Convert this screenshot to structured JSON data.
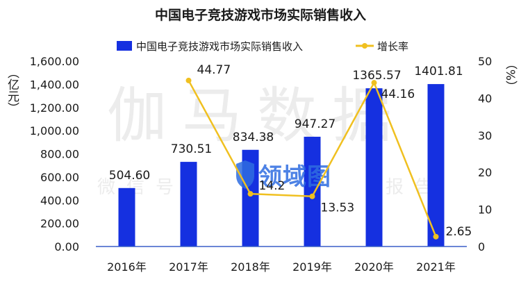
{
  "chart_data": {
    "type": "bar",
    "title": "中国电子竞技游戏市场实际销售收入",
    "categories": [
      "2016年",
      "2017年",
      "2018年",
      "2019年",
      "2020年",
      "2021年"
    ],
    "series": [
      {
        "name": "中国电子竞技游戏市场实际销售收入",
        "type": "bar",
        "axis": "left",
        "values": [
          504.6,
          730.51,
          834.38,
          947.27,
          1365.57,
          1401.81
        ],
        "labels": [
          "504.60",
          "730.51",
          "834.38",
          "947.27",
          "1365.57",
          "1401.81"
        ]
      },
      {
        "name": "增长率",
        "type": "line",
        "axis": "right",
        "values": [
          null,
          44.77,
          14.2,
          13.53,
          44.16,
          2.65
        ],
        "labels": [
          "",
          "44.77",
          "14.2",
          "13.53",
          "44.16",
          "2.65"
        ]
      }
    ],
    "ylabel_left": "（亿元）",
    "ylabel_right": "（%）",
    "ylim_left": [
      0,
      1600
    ],
    "ylim_right": [
      0,
      50
    ],
    "yticks_left": [
      "0.00",
      "200.00",
      "400.00",
      "600.00",
      "800.00",
      "1,000.00",
      "1,200.00",
      "1,400.00",
      "1,600.00"
    ],
    "yticks_right": [
      "0",
      "10",
      "20",
      "30",
      "40",
      "50"
    ],
    "legend_position": "top-center",
    "grid": false,
    "colors": {
      "bar": "#1530e0",
      "line": "#f0c020"
    }
  },
  "watermark": {
    "main": "伽马数据",
    "sub": "微信号：",
    "sub2": "报告",
    "logo": "领域图"
  }
}
